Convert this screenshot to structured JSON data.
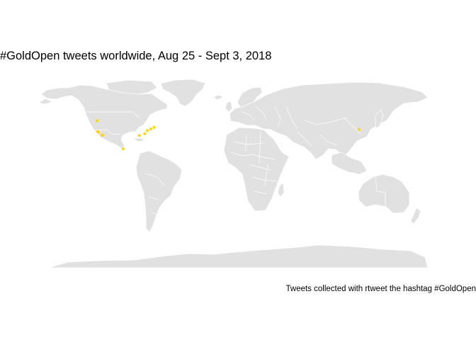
{
  "title": "#GoldOpen tweets worldwide, Aug 25 - Sept 3, 2018",
  "caption": "Tweets collected with rtweet the hashtag #GoldOpen",
  "colors": {
    "land": "#e1e1e1",
    "borders": "#ffffff",
    "points": "#ffd700",
    "background": "#ffffff"
  },
  "tweets": [
    {
      "lon": -123.1,
      "lat": 49.3
    },
    {
      "lon": -122.4,
      "lat": 37.8
    },
    {
      "lon": -121.9,
      "lat": 37.3
    },
    {
      "lon": -118.3,
      "lat": 34.1
    },
    {
      "lon": -117.9,
      "lat": 33.8
    },
    {
      "lon": -99.1,
      "lat": 19.4
    },
    {
      "lon": -84.4,
      "lat": 33.7
    },
    {
      "lon": -79.4,
      "lat": 35.5
    },
    {
      "lon": -77.0,
      "lat": 38.9
    },
    {
      "lon": -74.0,
      "lat": 40.7
    },
    {
      "lon": -71.1,
      "lat": 42.4
    },
    {
      "lon": 116.4,
      "lat": 39.9
    }
  ]
}
